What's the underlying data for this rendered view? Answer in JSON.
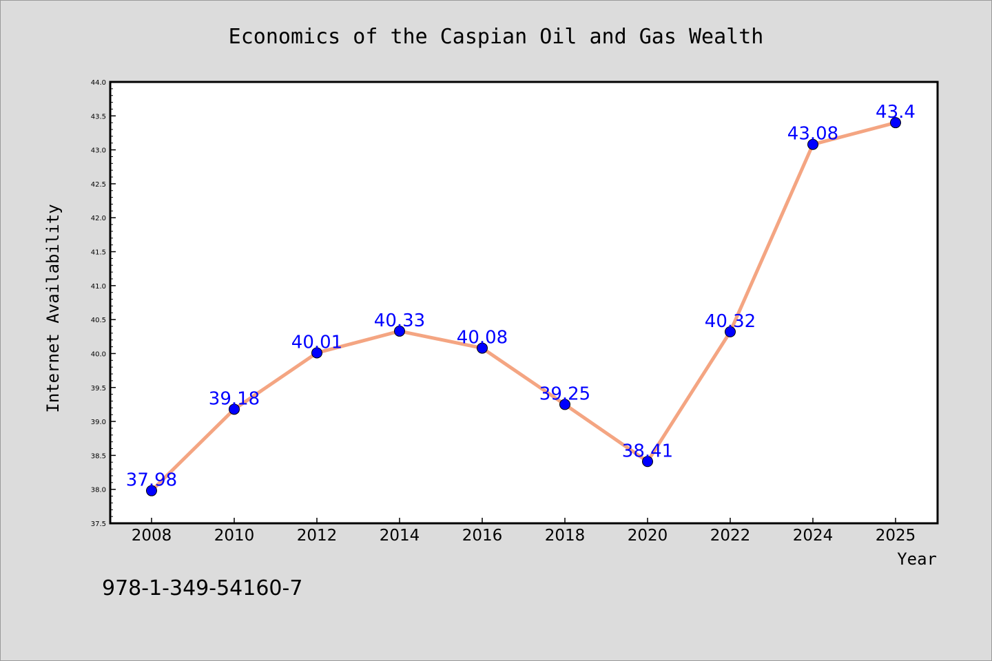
{
  "chart_data": {
    "type": "line",
    "title": "Economics of the Caspian Oil and Gas Wealth",
    "xlabel": "Year",
    "ylabel": "Internet Availability",
    "categories": [
      "2008",
      "2010",
      "2012",
      "2014",
      "2016",
      "2018",
      "2020",
      "2022",
      "2024",
      "2025"
    ],
    "values": [
      37.98,
      39.18,
      40.01,
      40.33,
      40.08,
      39.25,
      38.41,
      40.32,
      43.08,
      43.4
    ],
    "data_labels": [
      "37.98",
      "39.18",
      "40.01",
      "40.33",
      "40.08",
      "39.25",
      "38.41",
      "40.32",
      "43.08",
      "43.4"
    ],
    "ylim": [
      37.5,
      44.0
    ],
    "yticks": [
      "37.5",
      "38.0",
      "38.5",
      "39.0",
      "39.5",
      "40.0",
      "40.5",
      "41.0",
      "41.5",
      "42.0",
      "42.5",
      "43.0",
      "43.5",
      "44.0"
    ],
    "grid": false,
    "line_color": "#f4a582",
    "marker_color": "#0000ff",
    "label_color": "#0000ff"
  },
  "footer_text": "978-1-349-54160-7"
}
